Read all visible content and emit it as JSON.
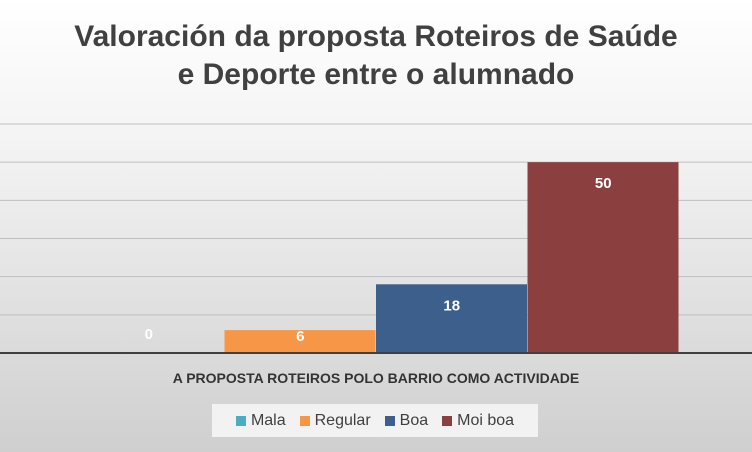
{
  "chart_data": {
    "type": "bar",
    "title": "Valoración  da proposta Roteiros de Saúde\ne Deporte entre o alumnado",
    "categories": [
      "A PROPOSTA ROTEIROS POLO BARRIO COMO ACTIVIDADE"
    ],
    "series": [
      {
        "name": "Mala",
        "values": [
          0
        ],
        "color": "#4bacc6"
      },
      {
        "name": "Regular",
        "values": [
          6
        ],
        "color": "#f79646"
      },
      {
        "name": "Boa",
        "values": [
          18
        ],
        "color": "#3d5f8c"
      },
      {
        "name": "Moi boa",
        "values": [
          50
        ],
        "color": "#8b3f3f"
      }
    ],
    "ylim": [
      0,
      60
    ],
    "y_gridline_step": 10,
    "grid": true,
    "legend_position": "bottom",
    "data_labels": true
  }
}
